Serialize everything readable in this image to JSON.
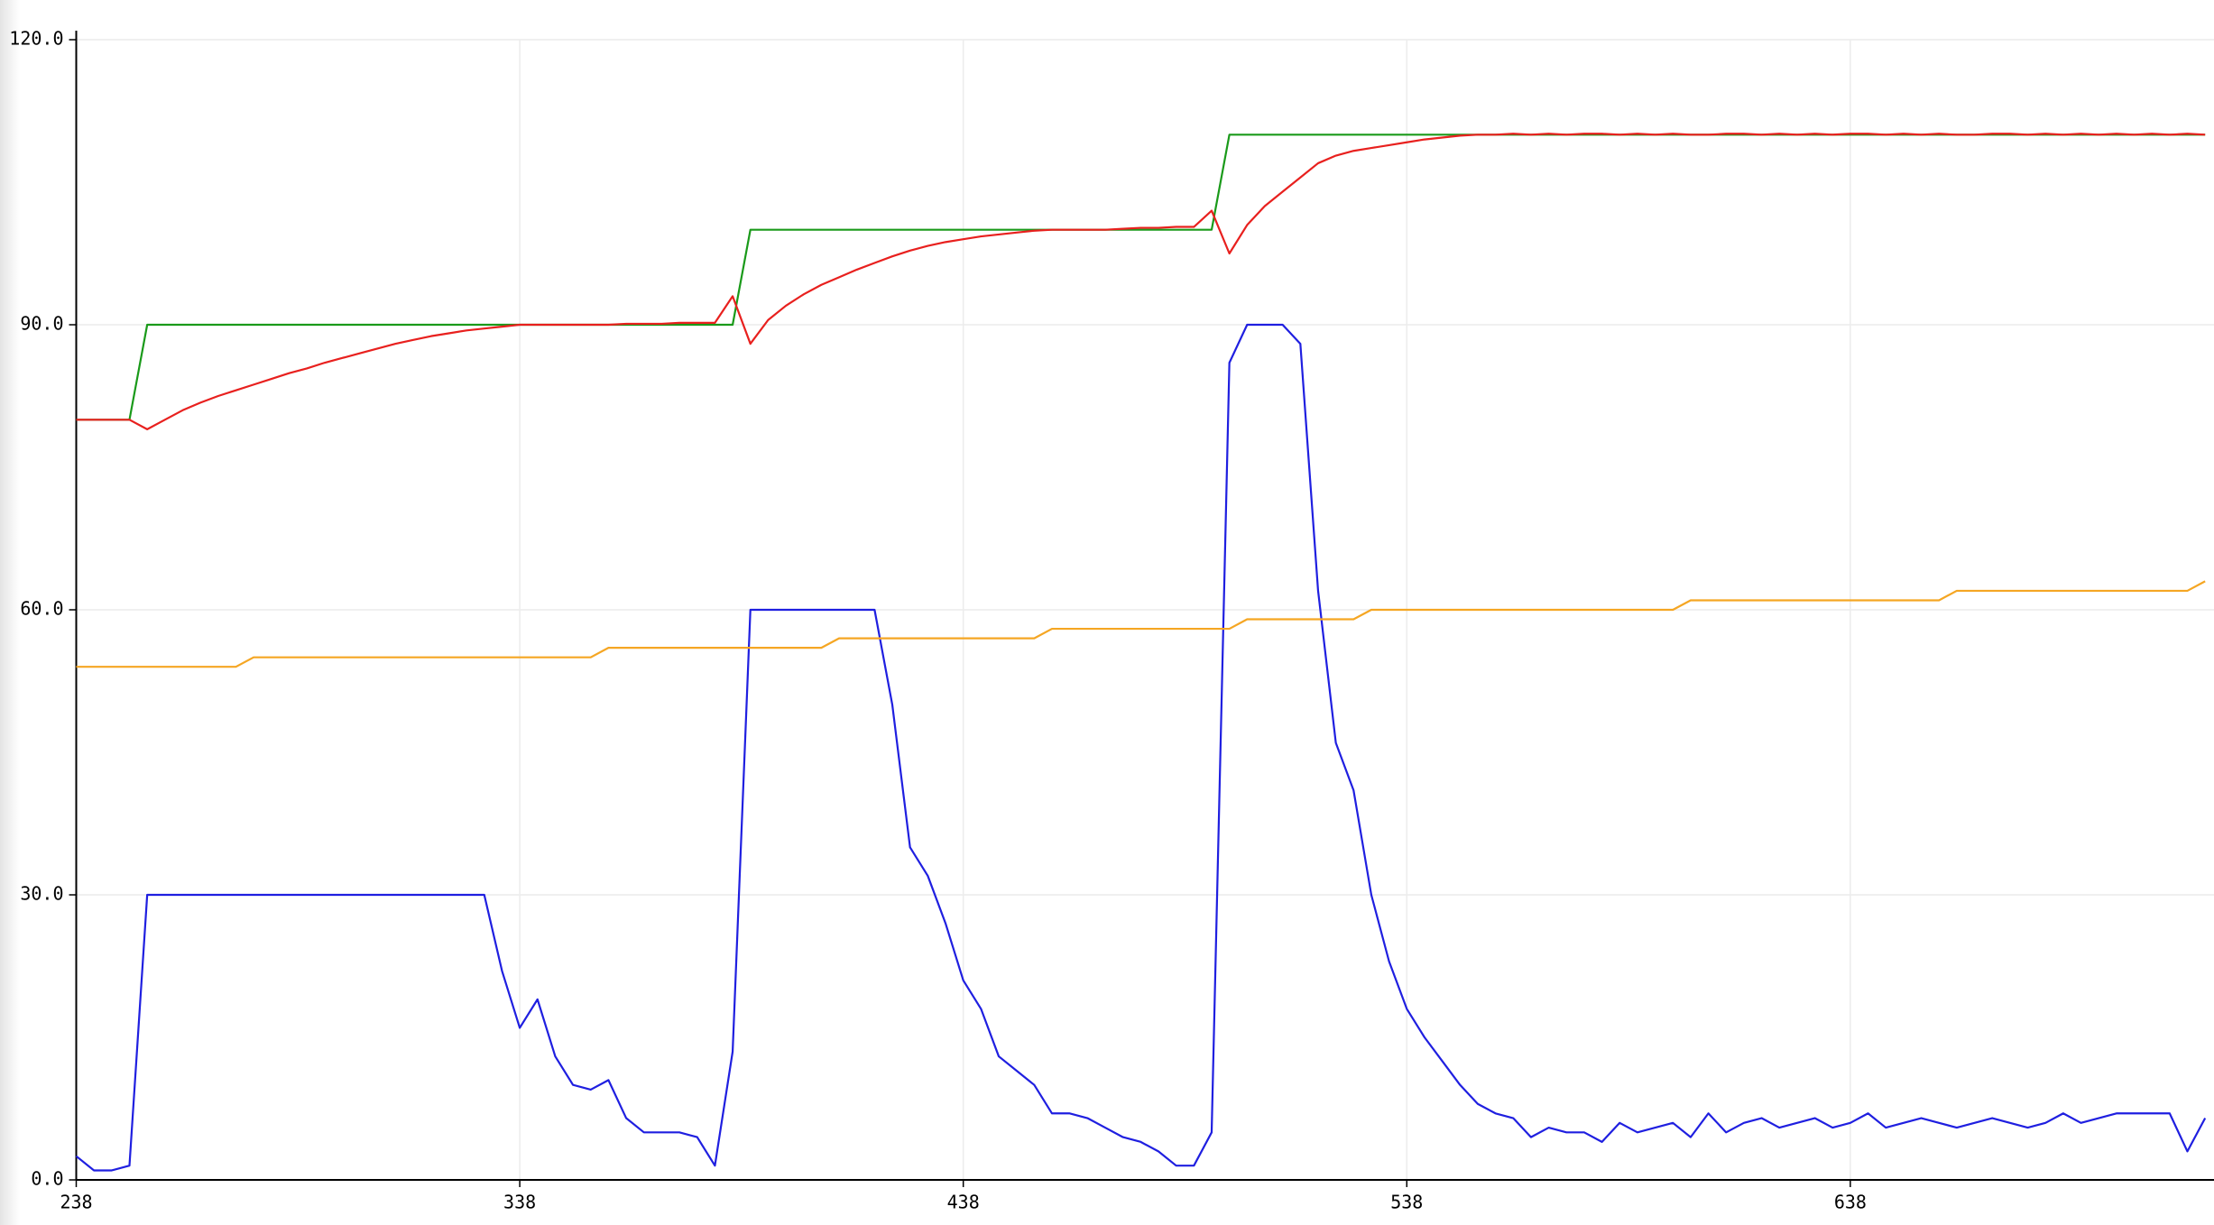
{
  "chart_data": {
    "type": "line",
    "x": [
      238,
      242,
      246,
      250,
      254,
      258,
      262,
      266,
      270,
      274,
      278,
      282,
      286,
      290,
      294,
      298,
      302,
      306,
      310,
      314,
      318,
      322,
      326,
      330,
      334,
      338,
      342,
      346,
      350,
      354,
      358,
      362,
      366,
      370,
      374,
      378,
      382,
      386,
      390,
      394,
      398,
      402,
      406,
      410,
      414,
      418,
      422,
      426,
      430,
      434,
      438,
      442,
      446,
      450,
      454,
      458,
      462,
      466,
      470,
      474,
      478,
      482,
      486,
      490,
      494,
      498,
      502,
      506,
      510,
      514,
      518,
      522,
      526,
      530,
      534,
      538,
      542,
      546,
      550,
      554,
      558,
      562,
      566,
      570,
      574,
      578,
      582,
      586,
      590,
      594,
      598,
      602,
      606,
      610,
      614,
      618,
      622,
      626,
      630,
      634,
      638,
      642,
      646,
      650,
      654,
      658,
      662,
      666,
      670,
      674,
      678,
      682,
      686,
      690,
      694,
      698,
      702,
      706,
      710,
      714,
      718
    ],
    "series": [
      {
        "color": "#1a9a1a",
        "values": [
          80,
          80,
          80,
          80,
          90,
          90,
          90,
          90,
          90,
          90,
          90,
          90,
          90,
          90,
          90,
          90,
          90,
          90,
          90,
          90,
          90,
          90,
          90,
          90,
          90,
          90,
          90,
          90,
          90,
          90,
          90,
          90,
          90,
          90,
          90,
          90,
          90,
          90,
          100,
          100,
          100,
          100,
          100,
          100,
          100,
          100,
          100,
          100,
          100,
          100,
          100,
          100,
          100,
          100,
          100,
          100,
          100,
          100,
          100,
          100,
          100,
          100,
          100,
          100,
          100,
          110,
          110,
          110,
          110,
          110,
          110,
          110,
          110,
          110,
          110,
          110,
          110,
          110,
          110,
          110,
          110,
          110,
          110,
          110,
          110,
          110,
          110,
          110,
          110,
          110,
          110,
          110,
          110,
          110,
          110,
          110,
          110,
          110,
          110,
          110,
          110,
          110,
          110,
          110,
          110,
          110,
          110,
          110,
          110,
          110,
          110,
          110,
          110,
          110,
          110,
          110,
          110,
          110,
          110,
          110,
          110
        ]
      },
      {
        "color": "#e8201e",
        "values": [
          80,
          80,
          80,
          80,
          79,
          80,
          81,
          81.8,
          82.5,
          83.1,
          83.7,
          84.3,
          84.9,
          85.4,
          86,
          86.5,
          87,
          87.5,
          88,
          88.4,
          88.8,
          89.1,
          89.4,
          89.6,
          89.8,
          90,
          90,
          90,
          90,
          90,
          90,
          90.1,
          90.1,
          90.1,
          90.2,
          90.2,
          90.2,
          93,
          88,
          90.5,
          92,
          93.2,
          94.2,
          95,
          95.8,
          96.5,
          97.2,
          97.8,
          98.3,
          98.7,
          99,
          99.3,
          99.5,
          99.7,
          99.9,
          100,
          100,
          100,
          100,
          100.1,
          100.2,
          100.2,
          100.3,
          100.3,
          102,
          97.5,
          100.5,
          102.5,
          104,
          105.5,
          107,
          107.8,
          108.3,
          108.6,
          108.9,
          109.2,
          109.5,
          109.7,
          109.9,
          110,
          110,
          110.1,
          110,
          110.1,
          110,
          110.1,
          110.1,
          110,
          110.1,
          110,
          110.1,
          110,
          110,
          110.1,
          110.1,
          110,
          110.1,
          110,
          110.1,
          110,
          110.1,
          110.1,
          110,
          110.1,
          110,
          110.1,
          110,
          110,
          110.1,
          110.1,
          110,
          110.1,
          110,
          110.1,
          110,
          110.1,
          110,
          110.1,
          110,
          110.1,
          110
        ]
      },
      {
        "color": "#1f1fe0",
        "values": [
          2.5,
          1,
          1,
          1.5,
          30,
          30,
          30,
          30,
          30,
          30,
          30,
          30,
          30,
          30,
          30,
          30,
          30,
          30,
          30,
          30,
          30,
          30,
          30,
          30,
          22,
          16,
          19,
          13,
          10,
          9.5,
          10.5,
          6.5,
          5,
          5,
          5,
          4.5,
          1.5,
          13.5,
          60,
          60,
          60,
          60,
          60,
          60,
          60,
          60,
          50,
          35,
          32,
          27,
          21,
          18,
          13,
          11.5,
          10,
          7,
          7,
          6.5,
          5.5,
          4.5,
          4,
          3,
          1.5,
          1.5,
          5,
          86,
          90,
          90,
          90,
          88,
          62,
          46,
          41,
          30,
          23,
          18,
          15,
          12.5,
          10,
          8,
          7,
          6.5,
          4.5,
          5.5,
          5,
          5,
          4,
          6,
          5,
          5.5,
          6,
          4.5,
          7,
          5,
          6,
          6.5,
          5.5,
          6,
          6.5,
          5.5,
          6,
          7,
          5.5,
          6,
          6.5,
          6,
          5.5,
          6,
          6.5,
          6,
          5.5,
          6,
          7,
          6,
          6.5,
          7,
          7,
          7,
          7,
          3,
          6.5
        ]
      },
      {
        "color": "#f5a623",
        "values": [
          54,
          54,
          54,
          54,
          54,
          54,
          54,
          54,
          54,
          54,
          55,
          55,
          55,
          55,
          55,
          55,
          55,
          55,
          55,
          55,
          55,
          55,
          55,
          55,
          55,
          55,
          55,
          55,
          55,
          55,
          56,
          56,
          56,
          56,
          56,
          56,
          56,
          56,
          56,
          56,
          56,
          56,
          56,
          57,
          57,
          57,
          57,
          57,
          57,
          57,
          57,
          57,
          57,
          57,
          57,
          58,
          58,
          58,
          58,
          58,
          58,
          58,
          58,
          58,
          58,
          58,
          59,
          59,
          59,
          59,
          59,
          59,
          59,
          60,
          60,
          60,
          60,
          60,
          60,
          60,
          60,
          60,
          60,
          60,
          60,
          60,
          60,
          60,
          60,
          60,
          60,
          61,
          61,
          61,
          61,
          61,
          61,
          61,
          61,
          61,
          61,
          61,
          61,
          61,
          61,
          61,
          62,
          62,
          62,
          62,
          62,
          62,
          62,
          62,
          62,
          62,
          62,
          62,
          62,
          62,
          63
        ]
      }
    ],
    "xlim": [
      238,
      720
    ],
    "xticks": [
      238,
      338,
      438,
      538,
      638
    ],
    "ylim": [
      0,
      120
    ],
    "yticks": [
      {
        "value": 0,
        "label": "0.0"
      },
      {
        "value": 30,
        "label": "30.0"
      },
      {
        "value": 60,
        "label": "60.0"
      },
      {
        "value": 90,
        "label": "90.0"
      },
      {
        "value": 120,
        "label": "120.0"
      }
    ],
    "grid": true
  }
}
